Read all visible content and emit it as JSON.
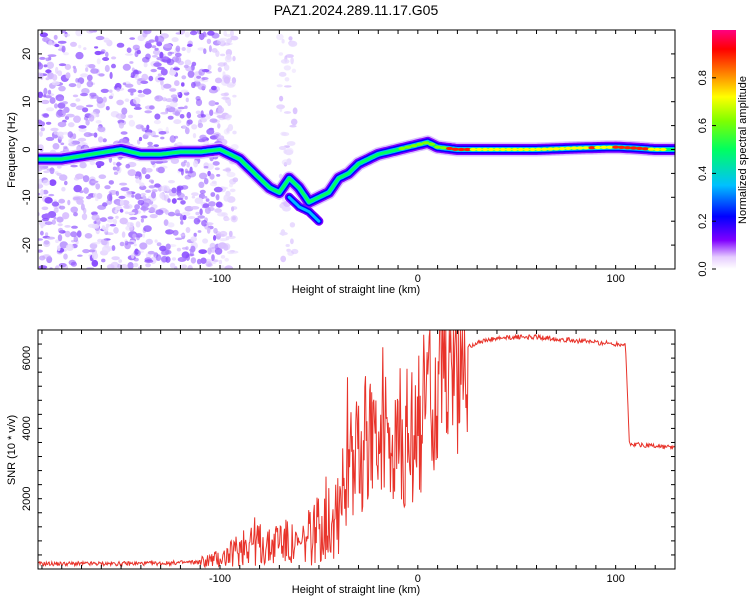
{
  "title": "PAZ1.2024.289.11.17.G05",
  "chart_data": [
    {
      "type": "heatmap",
      "xlabel": "Height of straight line (km)",
      "ylabel": "Frequency (Hz)",
      "xlim": [
        -192,
        130
      ],
      "ylim": [
        -25,
        25
      ],
      "xticks": [
        -100,
        0,
        100
      ],
      "yticks": [
        -20,
        -10,
        0,
        10,
        20
      ],
      "colorbar": {
        "label": "Normalized spectral amplitude",
        "range": [
          0,
          1
        ],
        "ticks": [
          0.0,
          0.2,
          0.4,
          0.6,
          0.8
        ],
        "colormap": [
          "#ffffff",
          "#8000ff",
          "#0000ff",
          "#00ffff",
          "#00ff00",
          "#ffff00",
          "#ff8000",
          "#ff0000",
          "#ff0080"
        ]
      },
      "ridge": {
        "x": [
          -192,
          -180,
          -165,
          -150,
          -140,
          -130,
          -120,
          -110,
          -100,
          -95,
          -90,
          -85,
          -80,
          -75,
          -70,
          -65,
          -60,
          -55,
          -50,
          -45,
          -40,
          -35,
          -30,
          -25,
          -20,
          -15,
          -10,
          -5,
          0,
          5,
          10,
          20,
          40,
          60,
          80,
          100,
          110,
          120,
          130
        ],
        "y": [
          -2,
          -2,
          -1,
          0,
          -1,
          -1,
          -0.5,
          -0.5,
          0,
          -1,
          -2,
          -4,
          -6,
          -8,
          -9,
          -6,
          -8,
          -11,
          -10,
          -9,
          -6,
          -5,
          -3,
          -2,
          -1,
          -0.5,
          0,
          0.5,
          1,
          1.5,
          0.5,
          0,
          0,
          0,
          0.3,
          0.5,
          0.3,
          0,
          0
        ]
      },
      "secondary_ridge": {
        "x": [
          -65,
          -60,
          -55,
          -50
        ],
        "y": [
          -10,
          -12,
          -13,
          -15
        ]
      }
    },
    {
      "type": "line",
      "xlabel": "Height of straight line (km)",
      "ylabel": "SNR (10 * v/v)",
      "xlim": [
        -192,
        130
      ],
      "ylim": [
        0,
        6800
      ],
      "xticks": [
        -100,
        0,
        100
      ],
      "yticks": [
        2000,
        4000,
        6000
      ],
      "color": "#e8332a",
      "series": [
        {
          "x": [
            -192,
            -160,
            -130,
            -110,
            -100,
            -95,
            -90,
            -85,
            -80,
            -75,
            -70,
            -65,
            -60,
            -55,
            -50,
            -45,
            -40,
            -35,
            -30,
            -25,
            -20,
            -15,
            -10,
            -5,
            0,
            5,
            10,
            15,
            20,
            25,
            30,
            40,
            50,
            60,
            70,
            80,
            90,
            100,
            105,
            107,
            110,
            120,
            130
          ],
          "y": [
            150,
            150,
            160,
            200,
            300,
            400,
            600,
            900,
            700,
            600,
            900,
            700,
            600,
            900,
            1200,
            1500,
            2000,
            2800,
            3200,
            3500,
            3600,
            3700,
            3800,
            4000,
            4300,
            4800,
            5200,
            5700,
            6100,
            6300,
            6450,
            6550,
            6600,
            6600,
            6550,
            6500,
            6450,
            6400,
            6400,
            3500,
            3550,
            3500,
            3450
          ]
        }
      ]
    }
  ]
}
